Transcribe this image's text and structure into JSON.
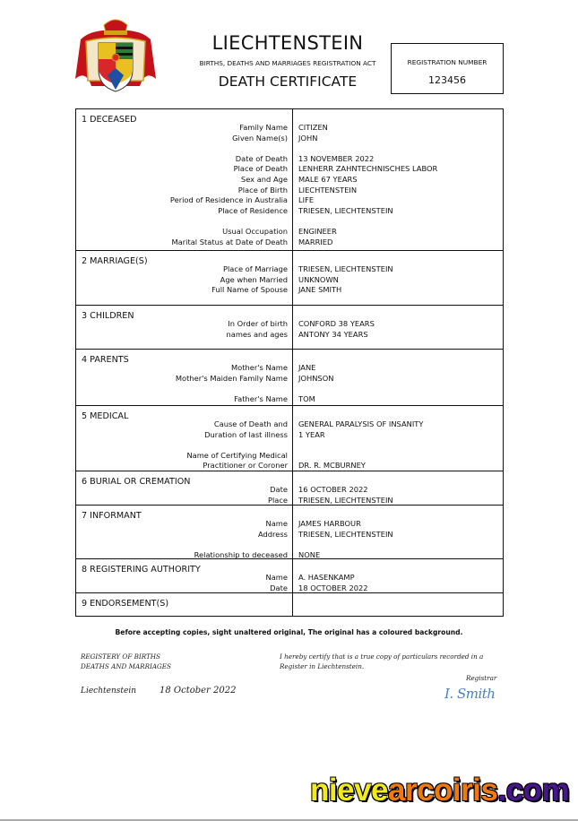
{
  "header": {
    "country": "LIECHTENSTEIN",
    "act": "BIRTHS, DEATHS AND MARRIAGES REGISTRATION ACT",
    "document_type": "DEATH CERTIFICATE",
    "registration_label": "REGISTRATION NUMBER",
    "registration_number": "123456"
  },
  "sections": [
    {
      "title": "1 DECEASED",
      "fields": [
        {
          "label": "Family Name",
          "value": "CITIZEN"
        },
        {
          "label": "Given Name(s)",
          "value": "JOHN"
        },
        {
          "label": "Date of Death",
          "value": "13 NOVEMBER 2022"
        },
        {
          "label": "Place of Death",
          "value": "LENHERR ZAHNTECHNISCHES LABOR"
        },
        {
          "label": "Sex and Age",
          "value": "MALE 67 YEARS"
        },
        {
          "label": "Place of Birth",
          "value": "LIECHTENSTEIN"
        },
        {
          "label": "Period of Residence in Australia",
          "value": "LIFE"
        },
        {
          "label": "Place of Residence",
          "value": "TRIESEN, LIECHTENSTEIN"
        },
        {
          "label": "Usual Occupation",
          "value": "ENGINEER"
        },
        {
          "label": "Marital Status at Date of Death",
          "value": "MARRIED"
        }
      ]
    },
    {
      "title": "2 MARRIAGE(S)",
      "fields": [
        {
          "label": "Place of Marriage",
          "value": "TRIESEN, LIECHTENSTEIN"
        },
        {
          "label": "Age when Married",
          "value": "UNKNOWN"
        },
        {
          "label": "Full Name of Spouse",
          "value": "JANE SMITH"
        }
      ]
    },
    {
      "title": "3 CHILDREN",
      "fields": [
        {
          "label": "In Order of birth",
          "value": "CONFORD 38 YEARS"
        },
        {
          "label": "names and ages",
          "value": "ANTONY 34 YEARS"
        }
      ]
    },
    {
      "title": "4 PARENTS",
      "fields": [
        {
          "label": "Mother's Name",
          "value": "JANE"
        },
        {
          "label": "Mother's Maiden Family Name",
          "value": "JOHNSON"
        },
        {
          "label": "Father's Name",
          "value": "TOM"
        }
      ]
    },
    {
      "title": "5 MEDICAL",
      "fields": [
        {
          "label": "Cause of Death and",
          "value": "GENERAL PARALYSIS OF INSANITY"
        },
        {
          "label": "Duration of last illness",
          "value": "1 YEAR"
        },
        {
          "label": "Name of Certifying Medical",
          "value": ""
        },
        {
          "label": "Practitioner or Coroner",
          "value": "DR. R. MCBURNEY"
        }
      ]
    },
    {
      "title": "6 BURIAL OR CREMATION",
      "fields": [
        {
          "label": "Date",
          "value": "16 OCTOBER 2022"
        },
        {
          "label": "Place",
          "value": "TRIESEN, LIECHTENSTEIN"
        }
      ]
    },
    {
      "title": "7 INFORMANT",
      "fields": [
        {
          "label": "Name",
          "value": "JAMES HARBOUR"
        },
        {
          "label": "Address",
          "value": "TRIESEN, LIECHTENSTEIN"
        },
        {
          "label": "Relationship to deceased",
          "value": "NONE"
        }
      ]
    },
    {
      "title": "8 REGISTERING AUTHORITY",
      "fields": [
        {
          "label": "Name",
          "value": "A. HASENKAMP"
        },
        {
          "label": "Date",
          "value": "18 OCTOBER 2022"
        }
      ]
    },
    {
      "title": "9 ENDORSEMENT(S)",
      "fields": []
    }
  ],
  "footer": {
    "notice": "Before accepting copies, sight unaltered original, The original has a coloured background.",
    "registry_line1": "REGISTERY OF BIRTHS",
    "registry_line2": "DEATHS AND MARRIAGES",
    "certify_line1": "I hereby certify that is a true copy of particulars recorded in a",
    "certify_line2": "Register in Liechtenstein.",
    "registrar_label": "Registrar",
    "signature": "I. Smith",
    "place": "Liechtenstein",
    "date": "18 October 2022"
  },
  "watermark": {
    "part1": "nieve",
    "part2": "arcoiris",
    "part3": ".com",
    "colors": [
      "#f2ea1c",
      "#f07a0e",
      "#4a1390"
    ]
  }
}
